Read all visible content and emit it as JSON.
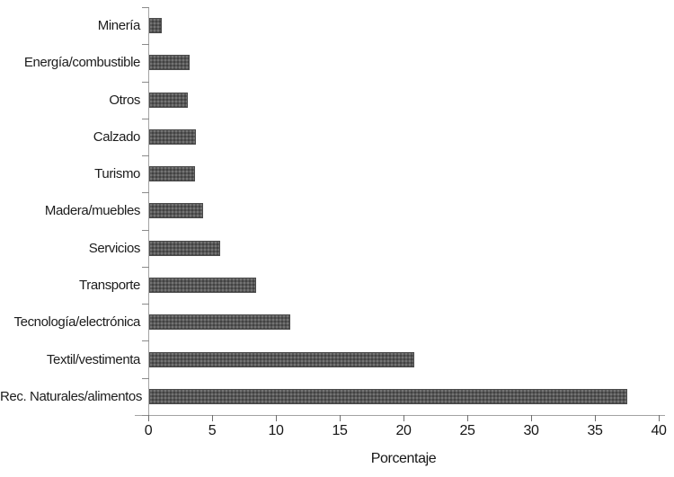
{
  "chart_data": {
    "type": "bar",
    "orientation": "horizontal",
    "title": "",
    "xlabel": "Porcentaje",
    "ylabel": "",
    "categories": [
      "Minería",
      "Energía/combustible",
      "Otros",
      "Calzado",
      "Turismo",
      "Madera/muebles",
      "Servicios",
      "Transporte",
      "Tecnología/electrónica",
      "Textil/vestimenta",
      "Rec. Naturales/alimentos"
    ],
    "values": [
      1.0,
      3.2,
      3.0,
      3.7,
      3.6,
      4.2,
      5.6,
      8.4,
      11.1,
      20.8,
      37.5
    ],
    "xlim": [
      0,
      40
    ],
    "xticks": [
      0,
      5,
      10,
      15,
      20,
      25,
      30,
      35,
      40
    ],
    "grid": false,
    "legend": null,
    "bar_color": "#585858",
    "axis_color": "#a3a3a3",
    "text_color": "#1c1c1c"
  }
}
